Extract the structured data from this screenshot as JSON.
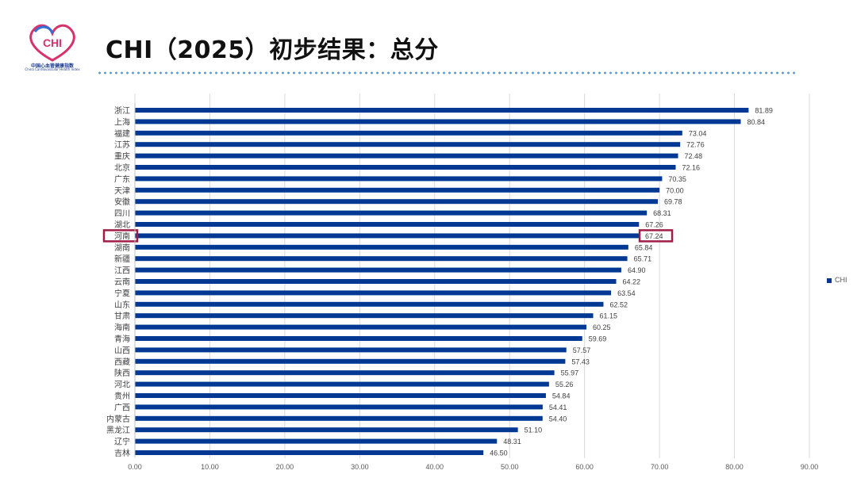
{
  "header": {
    "title": "CHI（2025）初步结果：总分",
    "logo_text": "CHI",
    "logo_cn": "中国心血管健康指数",
    "logo_en": "China Cardiovascular Health Index"
  },
  "colors": {
    "bar": "#003893",
    "highlight": "#a01d48",
    "grid": "#d9d9d9",
    "accent_dots": "#5b9bd5"
  },
  "chart_data": {
    "type": "bar",
    "orientation": "horizontal",
    "categories": [
      "浙江",
      "上海",
      "福建",
      "江苏",
      "重庆",
      "北京",
      "广东",
      "天津",
      "安徽",
      "四川",
      "湖北",
      "河南",
      "湖南",
      "新疆",
      "江西",
      "云南",
      "宁夏",
      "山东",
      "甘肃",
      "海南",
      "青海",
      "山西",
      "西藏",
      "陕西",
      "河北",
      "贵州",
      "广西",
      "内蒙古",
      "黑龙江",
      "辽宁",
      "吉林"
    ],
    "series": [
      {
        "name": "CHI",
        "values": [
          81.89,
          80.84,
          73.04,
          72.76,
          72.48,
          72.16,
          70.35,
          70.0,
          69.78,
          68.31,
          67.26,
          67.24,
          65.84,
          65.71,
          64.9,
          64.22,
          63.54,
          62.52,
          61.15,
          60.25,
          59.69,
          57.57,
          57.43,
          55.97,
          55.26,
          54.84,
          54.41,
          54.4,
          51.1,
          48.31,
          46.5
        ]
      }
    ],
    "data_labels": [
      "81.89",
      "80.84",
      "73.04",
      "72.76",
      "72.48",
      "72.16",
      "70.35",
      "70.00",
      "69.78",
      "68.31",
      "67.26",
      "67.24",
      "65.84",
      "65.71",
      "64.90",
      "64.22",
      "63.54",
      "62.52",
      "61.15",
      "60.25",
      "59.69",
      "57.57",
      "57.43",
      "55.97",
      "55.26",
      "54.84",
      "54.41",
      "54.40",
      "51.10",
      "48.31",
      "46.50"
    ],
    "x_ticks": [
      "0.00",
      "10.00",
      "20.00",
      "30.00",
      "40.00",
      "50.00",
      "60.00",
      "70.00",
      "80.00",
      "90.00"
    ],
    "xlim": [
      0,
      90
    ],
    "grid": true,
    "legend_position": "right",
    "highlighted_category": "河南"
  }
}
